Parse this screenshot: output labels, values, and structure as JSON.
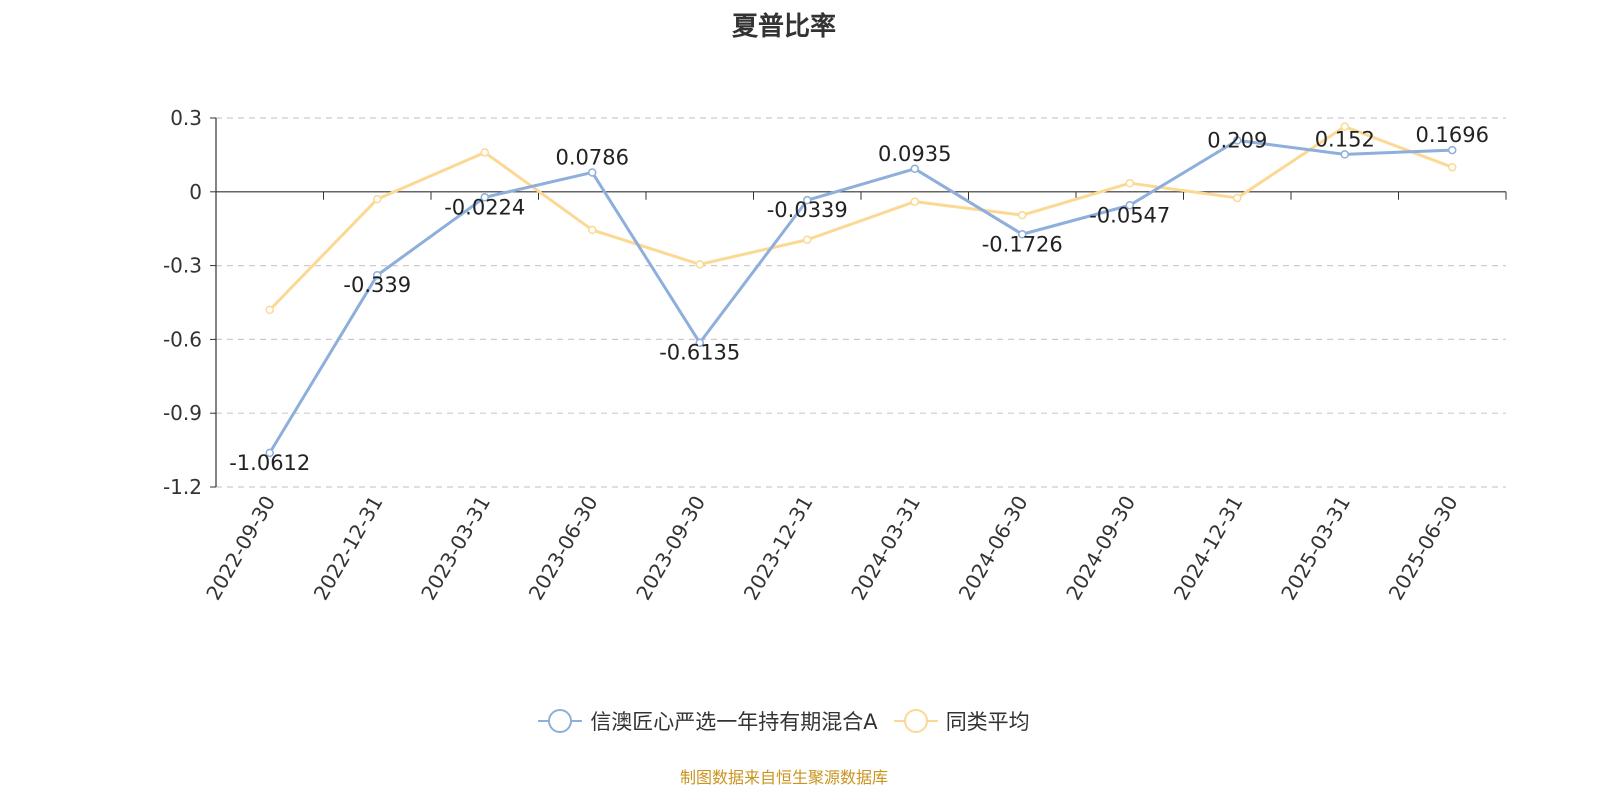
{
  "chart_data": {
    "type": "line",
    "title": "夏普比率",
    "x": [
      "2022-09-30",
      "2022-12-31",
      "2023-03-31",
      "2023-06-30",
      "2023-09-30",
      "2023-12-31",
      "2024-03-31",
      "2024-06-30",
      "2024-09-30",
      "2024-12-31",
      "2025-03-31",
      "2025-06-30"
    ],
    "ylim": [
      -1.2,
      0.3
    ],
    "yticks": [
      "0.3",
      "0",
      "-0.3",
      "-0.6",
      "-0.9",
      "-1.2"
    ],
    "grid": true,
    "legend_position": "bottom",
    "series": [
      {
        "name": "信澳匠心严选一年持有期混合A",
        "color": "#8eaedb",
        "values": [
          -1.0612,
          -0.339,
          -0.0224,
          0.0786,
          -0.6135,
          -0.0339,
          0.0935,
          -0.1726,
          -0.0547,
          0.209,
          0.152,
          0.1696
        ],
        "labels": [
          "-1.0612",
          "-0.339",
          "-0.0224",
          "0.0786",
          "-0.6135",
          "-0.0339",
          "0.0935",
          "-0.1726",
          "-0.0547",
          "0.209",
          "0.152",
          "0.1696"
        ]
      },
      {
        "name": "同类平均",
        "color": "#fbd994",
        "values": [
          -0.48,
          -0.03,
          0.16,
          -0.155,
          -0.295,
          -0.195,
          -0.04,
          -0.095,
          0.035,
          -0.025,
          0.265,
          0.1
        ]
      }
    ]
  },
  "footer": "制图数据来自恒生聚源数据库"
}
